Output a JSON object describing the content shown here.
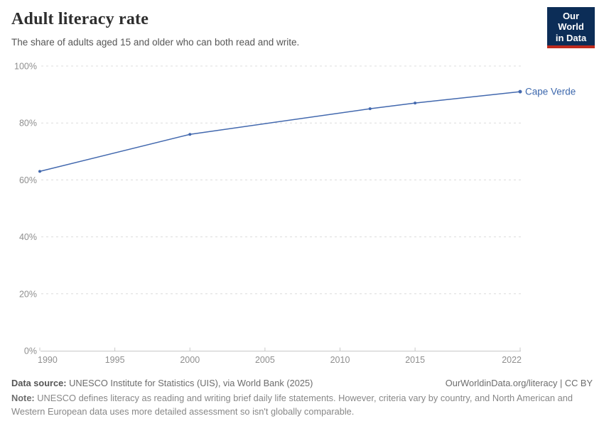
{
  "header": {
    "title": "Adult literacy rate",
    "subtitle": "The share of adults aged 15 and older who can both read and write.",
    "logo": {
      "line1": "Our World",
      "line2": "in Data",
      "bg_color": "#0c2d57",
      "stripe_color": "#bf2a1d"
    }
  },
  "chart_data": {
    "type": "line",
    "title": "Adult literacy rate",
    "series": [
      {
        "name": "Cape Verde",
        "color": "#4268ae",
        "label_color": "#3d68ad",
        "points": [
          {
            "x": 1990,
            "y": 63
          },
          {
            "x": 2000,
            "y": 76
          },
          {
            "x": 2012,
            "y": 85
          },
          {
            "x": 2015,
            "y": 87
          },
          {
            "x": 2022,
            "y": 91
          }
        ]
      }
    ],
    "xlabel": "",
    "ylabel": "",
    "xlim": [
      1990,
      2022
    ],
    "ylim": [
      0,
      100
    ],
    "x_ticks": [
      1990,
      1995,
      2000,
      2005,
      2010,
      2015,
      2022
    ],
    "y_ticks": [
      0,
      20,
      40,
      60,
      80,
      100
    ],
    "y_suffix": "%",
    "grid": "horizontal-dashed",
    "legend_position": "line-end-label",
    "grid_color": "#dcdcdc",
    "axis_color": "#c8c8c8",
    "tick_label_color": "#8f8f8f"
  },
  "footer": {
    "source_label": "Data source:",
    "source_text": " UNESCO Institute for Statistics (UIS), via World Bank (2025)",
    "license_text": "OurWorldinData.org/literacy | CC BY",
    "note_label": "Note:",
    "note_text": " UNESCO defines literacy as reading and writing brief daily life statements. However, criteria vary by country, and North American and Western European data uses more detailed assessment so isn't globally comparable."
  }
}
